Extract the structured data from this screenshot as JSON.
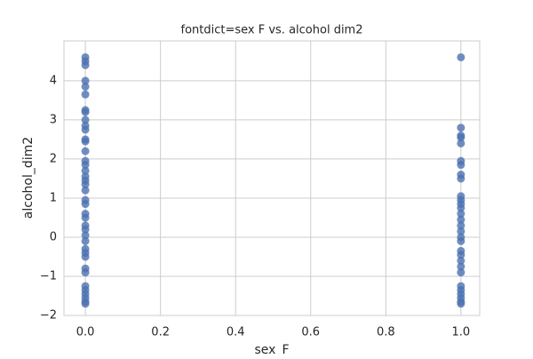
{
  "chart_data": {
    "type": "scatter",
    "title": "fontdict=sex F vs. alcohol dim2",
    "xlabel": "sex_F",
    "ylabel": "alcohol_dim2",
    "color": "#4c72b0",
    "grid": true,
    "x": [
      0,
      0,
      0,
      0,
      0,
      0,
      0,
      0,
      0,
      0,
      0,
      0,
      0,
      0,
      0,
      0,
      0,
      0,
      0,
      0,
      0,
      0,
      0,
      0,
      0,
      0,
      0,
      0,
      0,
      0,
      0,
      0,
      0,
      0,
      0,
      0,
      0,
      0,
      0,
      0,
      1,
      1,
      1,
      1,
      1,
      1,
      1,
      1,
      1,
      1,
      1,
      1,
      1,
      1,
      1,
      1,
      1,
      1,
      1,
      1,
      1,
      1,
      1,
      1,
      1,
      1,
      1,
      1,
      1,
      1
    ],
    "values": [
      4.6,
      4.5,
      4.4,
      4.0,
      3.85,
      3.65,
      3.25,
      3.2,
      3.0,
      2.85,
      2.75,
      2.5,
      2.45,
      2.2,
      1.95,
      1.85,
      1.7,
      1.55,
      1.45,
      1.35,
      1.2,
      0.95,
      0.85,
      0.6,
      0.5,
      0.3,
      0.2,
      0.05,
      -0.1,
      -0.3,
      -0.4,
      -0.5,
      -0.8,
      -0.9,
      -1.25,
      -1.35,
      -1.45,
      -1.55,
      -1.65,
      -1.7,
      4.6,
      2.8,
      2.6,
      2.55,
      2.4,
      1.95,
      1.85,
      1.6,
      1.5,
      1.05,
      0.95,
      0.85,
      0.75,
      0.6,
      0.45,
      0.3,
      0.15,
      0,
      -0.1,
      -0.35,
      -0.45,
      -0.6,
      -0.75,
      -0.9,
      -1.25,
      -1.35,
      -1.45,
      -1.55,
      -1.65,
      -1.7
    ],
    "xlim": [
      -0.057,
      1.05
    ],
    "ylim": [
      -2,
      5.02
    ],
    "xticks": [
      {
        "value": 0,
        "label": "0.0"
      },
      {
        "value": 0.2,
        "label": "0.2"
      },
      {
        "value": 0.4,
        "label": "0.4"
      },
      {
        "value": 0.6,
        "label": "0.6"
      },
      {
        "value": 0.8,
        "label": "0.8"
      },
      {
        "value": 1,
        "label": "1.0"
      }
    ],
    "yticks": [
      {
        "value": -2,
        "label": "−2"
      },
      {
        "value": -1,
        "label": "−1"
      },
      0,
      1,
      2,
      3,
      4
    ]
  }
}
